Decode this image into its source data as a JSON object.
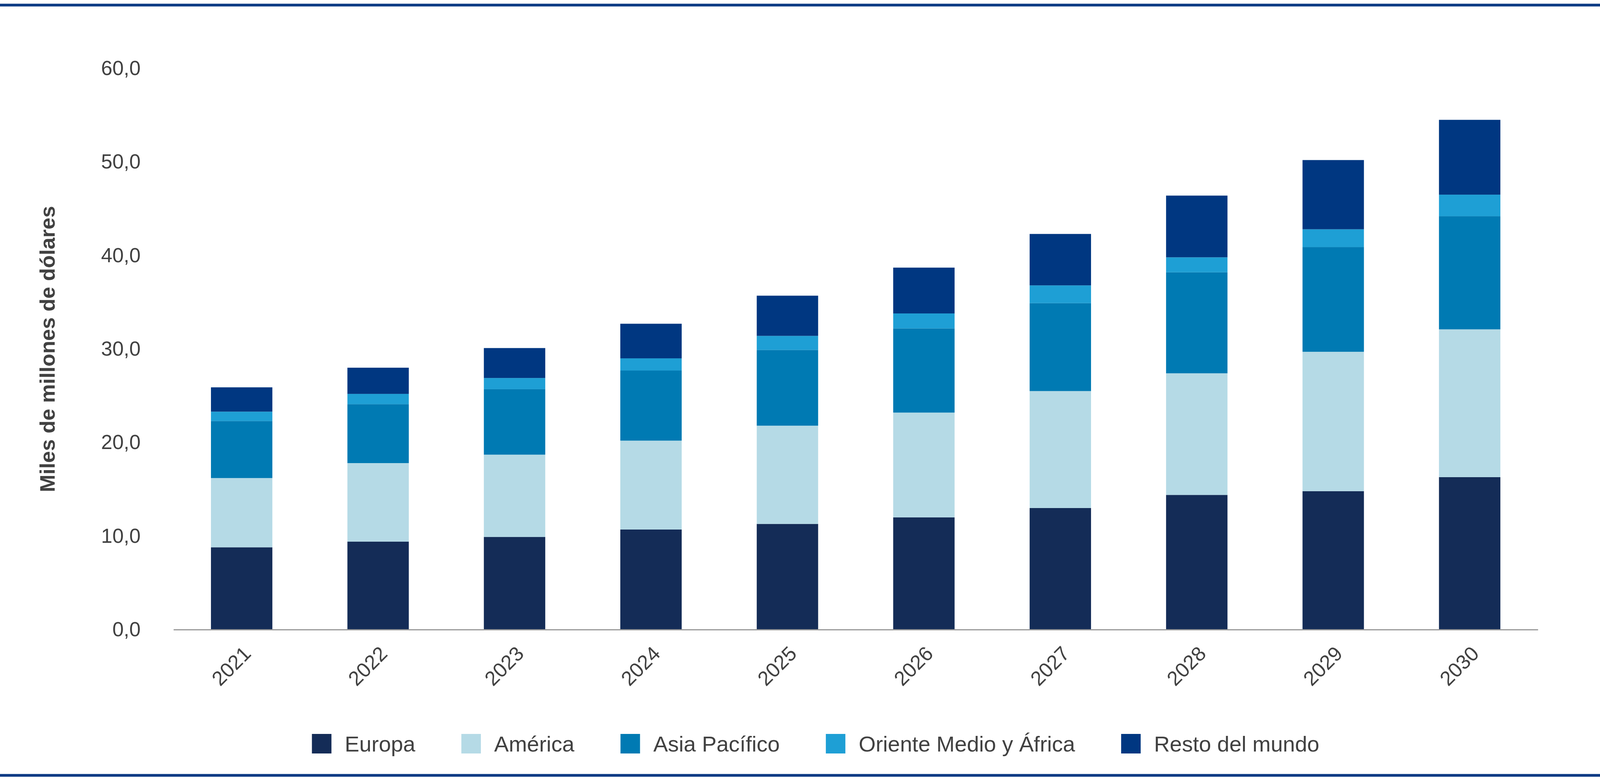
{
  "chart_data": {
    "type": "bar",
    "stacked": true,
    "y_label": "Miles de millones de dólares",
    "categories": [
      "2021",
      "2022",
      "2023",
      "2024",
      "2025",
      "2026",
      "2027",
      "2028",
      "2029",
      "2030"
    ],
    "series": [
      {
        "name": "Europa",
        "color": "#142c57",
        "values": [
          8.8,
          9.4,
          9.9,
          10.7,
          11.3,
          12.0,
          13.0,
          14.4,
          14.8,
          16.3
        ]
      },
      {
        "name": "América",
        "color": "#b5dae6",
        "values": [
          7.4,
          8.4,
          8.8,
          9.5,
          10.5,
          11.2,
          12.5,
          13.0,
          14.9,
          15.8
        ]
      },
      {
        "name": "Asia Pacífico",
        "color": "#007ab3",
        "values": [
          6.1,
          6.3,
          7.0,
          7.5,
          8.1,
          9.0,
          9.4,
          10.8,
          11.2,
          12.1
        ]
      },
      {
        "name": "Oriente Medio y África",
        "color": "#1e9fd5",
        "values": [
          1.0,
          1.1,
          1.2,
          1.3,
          1.5,
          1.6,
          1.9,
          1.6,
          1.9,
          2.3
        ]
      },
      {
        "name": "Resto del mundo",
        "color": "#003781",
        "values": [
          2.6,
          2.8,
          3.2,
          3.7,
          4.3,
          4.9,
          5.5,
          6.6,
          7.4,
          8.0
        ]
      }
    ],
    "ylim": [
      0,
      60
    ],
    "yticks": [
      {
        "value": 0,
        "label": "0,0"
      },
      {
        "value": 10,
        "label": "10,0"
      },
      {
        "value": 20,
        "label": "20,0"
      },
      {
        "value": 30,
        "label": "30,0"
      },
      {
        "value": 40,
        "label": "40,0"
      },
      {
        "value": 50,
        "label": "50,0"
      },
      {
        "value": 60,
        "label": "60,0"
      }
    ],
    "grid": false,
    "legend": "bottom"
  }
}
